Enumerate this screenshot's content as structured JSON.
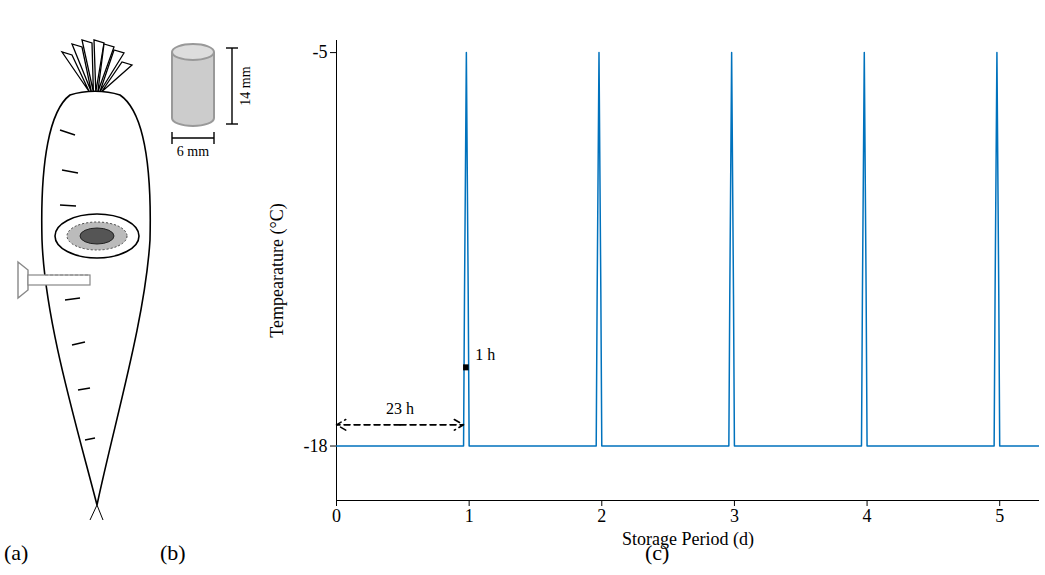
{
  "panels": {
    "a": "(a)",
    "b": "(b)",
    "c": "(c)"
  },
  "specimen": {
    "height_label": "14 mm",
    "diameter_label": "6 mm"
  },
  "chart_data": {
    "type": "line",
    "x_label": "Storage Period (d)",
    "y_label": "Tempearature (°C)",
    "x": [
      0,
      0.958,
      0.965,
      0.979,
      0.993,
      1.0,
      1.958,
      1.965,
      1.979,
      1.993,
      2.0,
      2.958,
      2.965,
      2.979,
      2.993,
      3.0,
      3.958,
      3.965,
      3.979,
      3.993,
      4.0,
      4.958,
      4.965,
      4.979,
      4.993,
      5.0,
      5.3
    ],
    "series": [
      {
        "color": "#0072bd",
        "values": [
          -18,
          -18,
          -13,
          -5,
          -13,
          -18,
          -18,
          -13,
          -5,
          -13,
          -18,
          -18,
          -13,
          -5,
          -13,
          -18,
          -18,
          -13,
          -5,
          -13,
          -18,
          -18,
          -13,
          -5,
          -13,
          -18,
          -18
        ]
      }
    ],
    "xlim": [
      0,
      5.3
    ],
    "xticks": [
      0,
      1,
      2,
      3,
      4,
      5
    ],
    "ylim": [
      -19.8,
      -4.6
    ],
    "yticks": [
      -18,
      -5
    ],
    "grid": false,
    "annotations": [
      {
        "text": "23 h",
        "x": [
          0,
          0.958
        ],
        "y": -17.3,
        "line_style": "dashed"
      },
      {
        "text": "1 h",
        "x": [
          0.958,
          1.0
        ],
        "y": -15.4,
        "line_style": "solid"
      }
    ]
  }
}
